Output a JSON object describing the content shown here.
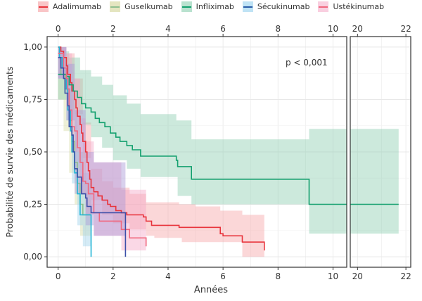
{
  "chart_data": {
    "type": "line",
    "subtype": "kaplan-meier-step-with-confidence-bands",
    "title": "",
    "xlabel": "Années",
    "ylabel": "Probabilité de survie des médicaments",
    "annotation": "p < 0,001",
    "x_axis_break": true,
    "xlim_main": [
      -0.4,
      10.5
    ],
    "xlim_break": [
      19.7,
      22.2
    ],
    "ylim": [
      -0.05,
      1.05
    ],
    "x_ticks_main": [
      "0",
      "2",
      "4",
      "6",
      "8",
      "10"
    ],
    "x_tick_values_main": [
      0,
      2,
      4,
      6,
      8,
      10
    ],
    "x_ticks_break": [
      "20",
      "22"
    ],
    "x_tick_values_break": [
      20,
      22
    ],
    "y_ticks": [
      "0,00",
      "0,25",
      "0,50",
      "0,75",
      "1,00"
    ],
    "y_tick_values": [
      0,
      0.25,
      0.5,
      0.75,
      1.0
    ],
    "grid": true,
    "legend_position": "top",
    "series": [
      {
        "name": "Adalimumab",
        "color": "#e8343c",
        "band_color": "#f7a6a9",
        "steps": [
          [
            0,
            1.0
          ],
          [
            0.1,
            0.98
          ],
          [
            0.2,
            0.95
          ],
          [
            0.3,
            0.91
          ],
          [
            0.35,
            0.87
          ],
          [
            0.45,
            0.83
          ],
          [
            0.5,
            0.79
          ],
          [
            0.6,
            0.75
          ],
          [
            0.65,
            0.71
          ],
          [
            0.7,
            0.67
          ],
          [
            0.8,
            0.63
          ],
          [
            0.85,
            0.59
          ],
          [
            0.9,
            0.55
          ],
          [
            1.0,
            0.5
          ],
          [
            1.05,
            0.45
          ],
          [
            1.1,
            0.41
          ],
          [
            1.15,
            0.37
          ],
          [
            1.2,
            0.33
          ],
          [
            1.3,
            0.31
          ],
          [
            1.45,
            0.29
          ],
          [
            1.6,
            0.27
          ],
          [
            1.8,
            0.25
          ],
          [
            1.9,
            0.24
          ],
          [
            2.1,
            0.22
          ],
          [
            2.3,
            0.21
          ],
          [
            2.5,
            0.2
          ],
          [
            3.1,
            0.19
          ],
          [
            3.2,
            0.17
          ],
          [
            3.4,
            0.15
          ],
          [
            4.4,
            0.14
          ],
          [
            5.9,
            0.11
          ],
          [
            6.0,
            0.1
          ],
          [
            6.6,
            0.1
          ],
          [
            6.7,
            0.07
          ],
          [
            7.5,
            0.03
          ]
        ],
        "end": 7.5,
        "lower": [
          [
            0,
            0.95
          ],
          [
            0.3,
            0.85
          ],
          [
            0.6,
            0.68
          ],
          [
            0.9,
            0.47
          ],
          [
            1.2,
            0.27
          ],
          [
            1.6,
            0.2
          ],
          [
            2.0,
            0.16
          ],
          [
            2.6,
            0.13
          ],
          [
            3.2,
            0.1
          ],
          [
            3.5,
            0.09
          ],
          [
            4.5,
            0.07
          ],
          [
            6.7,
            0.0
          ],
          [
            7.5,
            0.0
          ]
        ],
        "upper": [
          [
            0,
            1.0
          ],
          [
            0.3,
            0.97
          ],
          [
            0.6,
            0.85
          ],
          [
            0.9,
            0.64
          ],
          [
            1.2,
            0.42
          ],
          [
            1.6,
            0.36
          ],
          [
            2.0,
            0.33
          ],
          [
            2.6,
            0.3
          ],
          [
            3.2,
            0.26
          ],
          [
            4.4,
            0.25
          ],
          [
            5.0,
            0.24
          ],
          [
            5.9,
            0.22
          ],
          [
            6.7,
            0.2
          ],
          [
            7.5,
            0.2
          ]
        ]
      },
      {
        "name": "Guselkumab",
        "color": "#8fbf8f",
        "band_color": "#d8dba6",
        "steps": [
          [
            0,
            0.95
          ],
          [
            0.1,
            0.87
          ],
          [
            0.25,
            0.8
          ],
          [
            0.4,
            0.65
          ],
          [
            0.5,
            0.55
          ],
          [
            0.6,
            0.45
          ],
          [
            0.7,
            0.35
          ],
          [
            0.8,
            0.25
          ],
          [
            0.9,
            0.2
          ],
          [
            1.2,
            0.2
          ]
        ],
        "end": 1.2,
        "lower": [
          [
            0,
            0.75
          ],
          [
            0.2,
            0.6
          ],
          [
            0.4,
            0.4
          ],
          [
            0.6,
            0.25
          ],
          [
            0.8,
            0.1
          ],
          [
            1.2,
            0.05
          ]
        ],
        "upper": [
          [
            0,
            1.0
          ],
          [
            0.2,
            0.95
          ],
          [
            0.4,
            0.85
          ],
          [
            0.6,
            0.7
          ],
          [
            0.8,
            0.5
          ],
          [
            1.0,
            0.35
          ],
          [
            1.2,
            0.35
          ]
        ]
      },
      {
        "name": "Infliximab",
        "color": "#13a06e",
        "band_color": "#8fcfb2",
        "steps": [
          [
            0,
            0.87
          ],
          [
            0.3,
            0.86
          ],
          [
            0.4,
            0.82
          ],
          [
            0.55,
            0.79
          ],
          [
            0.7,
            0.76
          ],
          [
            0.85,
            0.73
          ],
          [
            1.0,
            0.71
          ],
          [
            1.2,
            0.69
          ],
          [
            1.35,
            0.66
          ],
          [
            1.5,
            0.64
          ],
          [
            1.7,
            0.62
          ],
          [
            1.9,
            0.59
          ],
          [
            2.1,
            0.57
          ],
          [
            2.25,
            0.55
          ],
          [
            2.5,
            0.53
          ],
          [
            2.7,
            0.51
          ],
          [
            3.0,
            0.48
          ],
          [
            4.3,
            0.46
          ],
          [
            4.35,
            0.43
          ],
          [
            4.85,
            0.37
          ],
          [
            9.13,
            0.25
          ],
          [
            21.7,
            0.25
          ]
        ],
        "end": 21.7,
        "lower": [
          [
            0,
            0.75
          ],
          [
            0.4,
            0.7
          ],
          [
            0.8,
            0.63
          ],
          [
            1.2,
            0.57
          ],
          [
            1.6,
            0.52
          ],
          [
            2.0,
            0.46
          ],
          [
            2.5,
            0.42
          ],
          [
            3.0,
            0.38
          ],
          [
            4.35,
            0.29
          ],
          [
            4.85,
            0.25
          ],
          [
            9.13,
            0.11
          ],
          [
            21.7,
            0.11
          ]
        ],
        "upper": [
          [
            0,
            0.98
          ],
          [
            0.4,
            0.95
          ],
          [
            0.8,
            0.89
          ],
          [
            1.2,
            0.86
          ],
          [
            1.6,
            0.82
          ],
          [
            2.0,
            0.77
          ],
          [
            2.5,
            0.73
          ],
          [
            3.0,
            0.68
          ],
          [
            4.3,
            0.65
          ],
          [
            4.85,
            0.56
          ],
          [
            9.13,
            0.61
          ],
          [
            21.7,
            0.61
          ]
        ]
      },
      {
        "name": "Sécukinumab",
        "color": "#1fb5d6",
        "band_color": "#9fd3ea",
        "steps": [
          [
            0,
            1.0
          ],
          [
            0.05,
            0.95
          ],
          [
            0.15,
            0.9
          ],
          [
            0.3,
            0.8
          ],
          [
            0.35,
            0.7
          ],
          [
            0.45,
            0.6
          ],
          [
            0.5,
            0.5
          ],
          [
            0.6,
            0.4
          ],
          [
            0.7,
            0.3
          ],
          [
            0.8,
            0.2
          ],
          [
            1.2,
            0.2
          ],
          [
            1.2,
            0.1
          ],
          [
            1.2,
            0.0
          ]
        ],
        "end": 1.2,
        "lower": [
          [
            0,
            0.85
          ],
          [
            0.3,
            0.65
          ],
          [
            0.5,
            0.35
          ],
          [
            0.7,
            0.15
          ],
          [
            0.9,
            0.05
          ],
          [
            1.2,
            0.0
          ]
        ],
        "upper": [
          [
            0,
            1.0
          ],
          [
            0.3,
            0.92
          ],
          [
            0.5,
            0.7
          ],
          [
            0.7,
            0.5
          ],
          [
            0.9,
            0.4
          ],
          [
            1.2,
            0.35
          ]
        ]
      },
      {
        "name": "Ustékinumab",
        "color": "#f0677e",
        "band_color": "#f4a8c8",
        "steps": [
          [
            0,
            0.97
          ],
          [
            0.2,
            0.9
          ],
          [
            0.3,
            0.85
          ],
          [
            0.35,
            0.8
          ],
          [
            0.4,
            0.7
          ],
          [
            0.5,
            0.62
          ],
          [
            0.6,
            0.6
          ],
          [
            0.7,
            0.52
          ],
          [
            0.8,
            0.45
          ],
          [
            0.9,
            0.36
          ],
          [
            1.0,
            0.35
          ],
          [
            1.1,
            0.3
          ],
          [
            1.3,
            0.21
          ],
          [
            1.5,
            0.17
          ],
          [
            2.3,
            0.13
          ],
          [
            2.6,
            0.09
          ],
          [
            3.2,
            0.05
          ]
        ],
        "end": 3.2,
        "lower": [
          [
            0,
            0.85
          ],
          [
            0.3,
            0.7
          ],
          [
            0.5,
            0.5
          ],
          [
            0.8,
            0.3
          ],
          [
            1.0,
            0.2
          ],
          [
            1.3,
            0.1
          ],
          [
            2.3,
            0.03
          ],
          [
            3.2,
            0.0
          ]
        ],
        "upper": [
          [
            0,
            1.0
          ],
          [
            0.3,
            0.97
          ],
          [
            0.5,
            0.85
          ],
          [
            0.8,
            0.66
          ],
          [
            1.0,
            0.55
          ],
          [
            1.3,
            0.45
          ],
          [
            2.3,
            0.32
          ],
          [
            3.2,
            0.27
          ]
        ]
      },
      {
        "name": "Sécukinumab (dark)",
        "legend_hidden": true,
        "color": "#3b4fa8",
        "band_color": "#a99ad6",
        "steps": [
          [
            0,
            0.95
          ],
          [
            0.1,
            0.9
          ],
          [
            0.2,
            0.85
          ],
          [
            0.25,
            0.78
          ],
          [
            0.35,
            0.72
          ],
          [
            0.4,
            0.62
          ],
          [
            0.5,
            0.58
          ],
          [
            0.55,
            0.5
          ],
          [
            0.6,
            0.42
          ],
          [
            0.7,
            0.38
          ],
          [
            0.85,
            0.3
          ],
          [
            1.0,
            0.28
          ],
          [
            1.05,
            0.24
          ],
          [
            1.2,
            0.21
          ],
          [
            2.45,
            0.21
          ],
          [
            2.45,
            0.0
          ]
        ],
        "end": 2.45,
        "lower": [
          [
            0,
            0.85
          ],
          [
            0.3,
            0.65
          ],
          [
            0.6,
            0.3
          ],
          [
            1.0,
            0.15
          ],
          [
            1.3,
            0.1
          ],
          [
            2.45,
            0.05
          ]
        ],
        "upper": [
          [
            0,
            1.0
          ],
          [
            0.3,
            0.92
          ],
          [
            0.6,
            0.7
          ],
          [
            1.0,
            0.5
          ],
          [
            1.3,
            0.45
          ],
          [
            2.45,
            0.4
          ]
        ]
      }
    ]
  },
  "legend": {
    "items": [
      {
        "label": "Adalimumab",
        "line": "#e8343c",
        "fill": "#f9c5c7"
      },
      {
        "label": "Guselkumab",
        "line": "#8fbf8f",
        "fill": "#e4e5c0"
      },
      {
        "label": "Infliximab",
        "line": "#13a06e",
        "fill": "#b9e2cf"
      },
      {
        "label": "Sécukinumab",
        "line": "#2a5da8",
        "fill": "#bfe3f5"
      },
      {
        "label": "Ustékinumab",
        "line": "#f0677e",
        "fill": "#f9cfe0"
      }
    ]
  }
}
